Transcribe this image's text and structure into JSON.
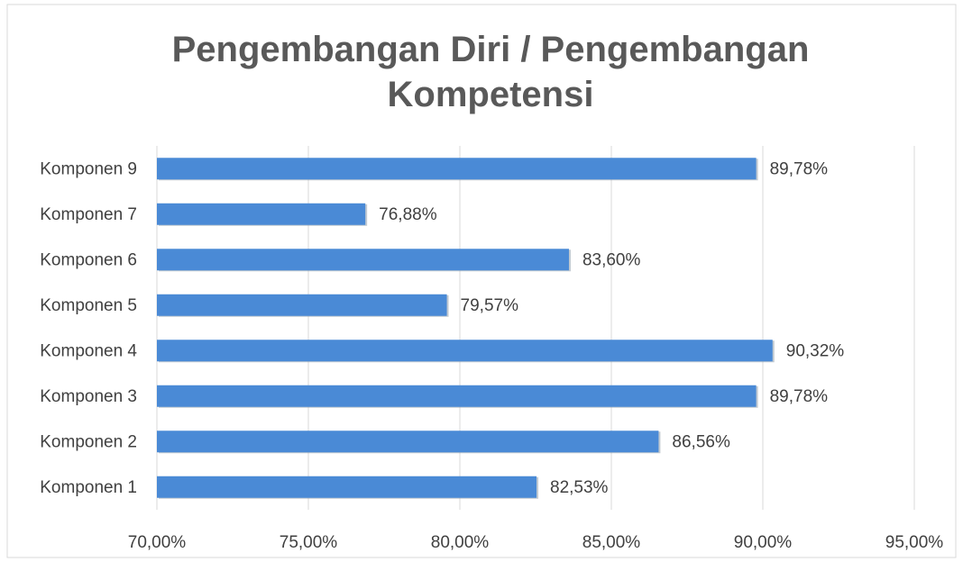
{
  "chart_data": {
    "type": "bar",
    "orientation": "horizontal",
    "title": "Pengembangan Diri / Pengembangan Kompetensi",
    "categories": [
      "Komponen 1",
      "Komponen 2",
      "Komponen 3",
      "Komponen 4",
      "Komponen 5",
      "Komponen 6",
      "Komponen 7",
      "Komponen 9"
    ],
    "values": [
      82.53,
      86.56,
      89.78,
      90.32,
      79.57,
      83.6,
      76.88,
      89.78
    ],
    "value_labels": [
      "82,53%",
      "86,56%",
      "89,78%",
      "90,32%",
      "79,57%",
      "83,60%",
      "76,88%",
      "89,78%"
    ],
    "color": "#4a8ad6",
    "xlim": [
      70,
      95
    ],
    "xticks": [
      {
        "value": 70,
        "label": "70,00%"
      },
      {
        "value": 75,
        "label": "75,00%"
      },
      {
        "value": 80,
        "label": "80,00%"
      },
      {
        "value": 85,
        "label": "85,00%"
      },
      {
        "value": 90,
        "label": "90,00%"
      },
      {
        "value": 95,
        "label": "95,00%"
      }
    ],
    "grid": true
  }
}
